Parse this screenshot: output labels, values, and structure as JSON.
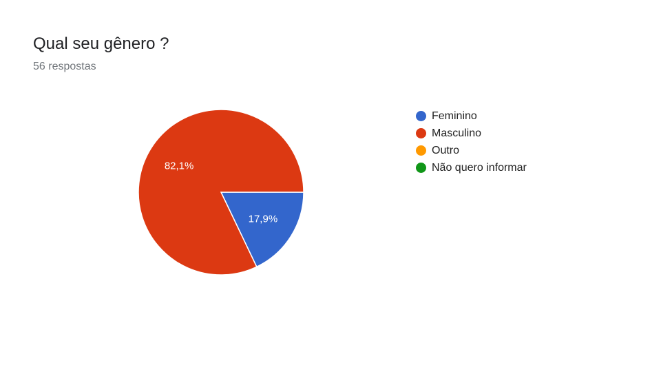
{
  "header": {
    "title": "Qual seu gênero ?",
    "responses": "56 respostas"
  },
  "chart_data": {
    "type": "pie",
    "categories": [
      "Feminino",
      "Masculino",
      "Outro",
      "Não quero informar"
    ],
    "values": [
      17.9,
      82.1,
      0,
      0
    ],
    "labels": [
      "17,9%",
      "82,1%",
      "",
      ""
    ],
    "colors": [
      "#3366cc",
      "#dc3912",
      "#ff9900",
      "#109618"
    ],
    "legend": "right"
  }
}
